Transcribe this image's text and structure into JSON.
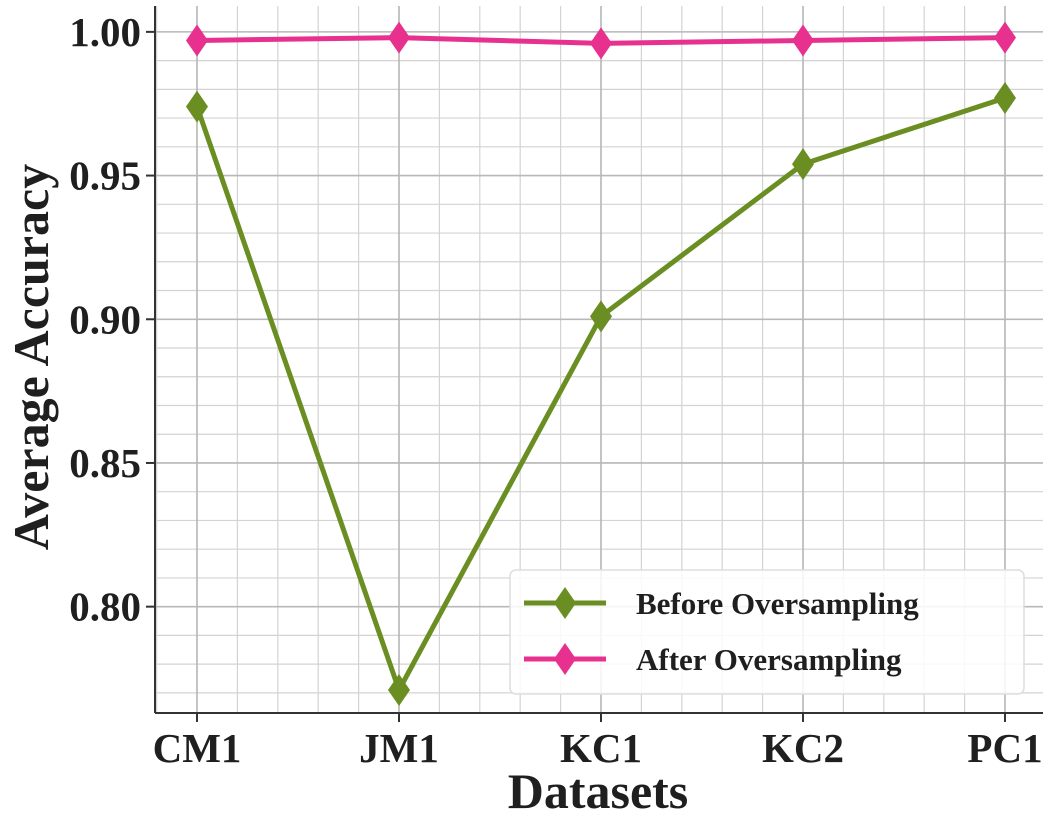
{
  "chart_data": {
    "type": "line",
    "title": "",
    "xlabel": "Datasets",
    "ylabel": "Average Accuracy",
    "categories": [
      "CM1",
      "JM1",
      "KC1",
      "KC2",
      "PC1"
    ],
    "series": [
      {
        "name": "Before Oversampling",
        "values": [
          0.974,
          0.771,
          0.901,
          0.954,
          0.977
        ],
        "color": "#6b8e23",
        "marker": "diamond"
      },
      {
        "name": "After Oversampling",
        "values": [
          0.997,
          0.998,
          0.996,
          0.997,
          0.998
        ],
        "color": "#e8318f",
        "marker": "diamond"
      }
    ],
    "yticks": [
      "0.80",
      "0.85",
      "0.90",
      "0.95",
      "1.00"
    ],
    "ytick_values": [
      0.8,
      0.85,
      0.9,
      0.95,
      1.0
    ],
    "ylim": [
      0.763,
      1.009
    ],
    "grid": true,
    "minor_grid": true,
    "legend_position": "bottom-right"
  }
}
